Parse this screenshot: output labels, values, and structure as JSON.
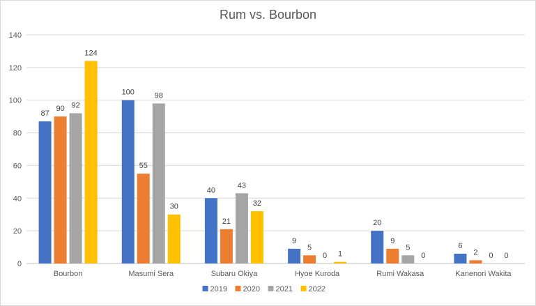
{
  "chart_data": {
    "type": "bar",
    "title": "Rum vs. Bourbon",
    "xlabel": "",
    "ylabel": "",
    "ylim": [
      0,
      140
    ],
    "yticks": [
      0,
      20,
      40,
      60,
      80,
      100,
      120,
      140
    ],
    "grid": true,
    "legend_position": "bottom",
    "categories": [
      "Bourbon",
      "Masumi Sera",
      "Subaru Okiya",
      "Hyoe Kuroda",
      "Rumi Wakasa",
      "Kanenori Wakita"
    ],
    "series": [
      {
        "name": "2019",
        "color": "#4472c4",
        "values": [
          87,
          100,
          40,
          9,
          20,
          6
        ]
      },
      {
        "name": "2020",
        "color": "#ed7d31",
        "values": [
          90,
          55,
          21,
          5,
          9,
          2
        ]
      },
      {
        "name": "2021",
        "color": "#a5a5a5",
        "values": [
          92,
          98,
          43,
          0,
          5,
          0
        ]
      },
      {
        "name": "2022",
        "color": "#ffc000",
        "values": [
          124,
          30,
          32,
          1,
          0,
          0
        ]
      }
    ]
  }
}
